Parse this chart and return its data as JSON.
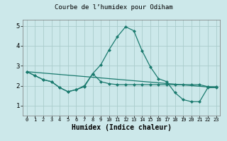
{
  "title": "Courbe de l’humidex pour Odiham",
  "xlabel": "Humidex (Indice chaleur)",
  "background_color": "#cce8ea",
  "plot_bg_color": "#cce8ea",
  "grid_color": "#aacccc",
  "line_color": "#1a7a6e",
  "xlim": [
    -0.5,
    23.5
  ],
  "ylim": [
    0.5,
    5.3
  ],
  "xticks": [
    0,
    1,
    2,
    3,
    4,
    5,
    6,
    7,
    8,
    9,
    10,
    11,
    12,
    13,
    14,
    15,
    16,
    17,
    18,
    19,
    20,
    21,
    22,
    23
  ],
  "yticks": [
    1,
    2,
    3,
    4,
    5
  ],
  "line2_x": [
    0,
    1,
    2,
    3,
    4,
    5,
    6,
    7,
    8,
    9,
    10,
    11,
    12,
    13,
    14,
    15,
    16,
    17,
    18,
    19,
    20,
    21,
    22,
    23
  ],
  "line2_y": [
    2.7,
    2.5,
    2.3,
    2.2,
    1.9,
    1.7,
    1.8,
    1.95,
    2.6,
    3.05,
    3.8,
    4.45,
    4.95,
    4.75,
    3.75,
    2.95,
    2.35,
    2.2,
    1.65,
    1.3,
    1.2,
    1.2,
    1.9,
    1.9
  ],
  "line1_x": [
    0,
    1,
    2,
    3,
    4,
    5,
    6,
    7,
    8,
    9,
    10,
    11,
    12,
    13,
    14,
    15,
    16,
    17,
    18,
    19,
    20,
    21,
    22,
    23
  ],
  "line1_y": [
    2.7,
    2.5,
    2.3,
    2.2,
    1.9,
    1.7,
    1.8,
    2.0,
    2.6,
    2.2,
    2.1,
    2.05,
    2.05,
    2.05,
    2.05,
    2.05,
    2.05,
    2.05,
    2.05,
    2.05,
    2.05,
    2.05,
    1.95,
    1.95
  ],
  "line3_x": [
    0,
    23
  ],
  "line3_y": [
    2.7,
    1.9
  ]
}
